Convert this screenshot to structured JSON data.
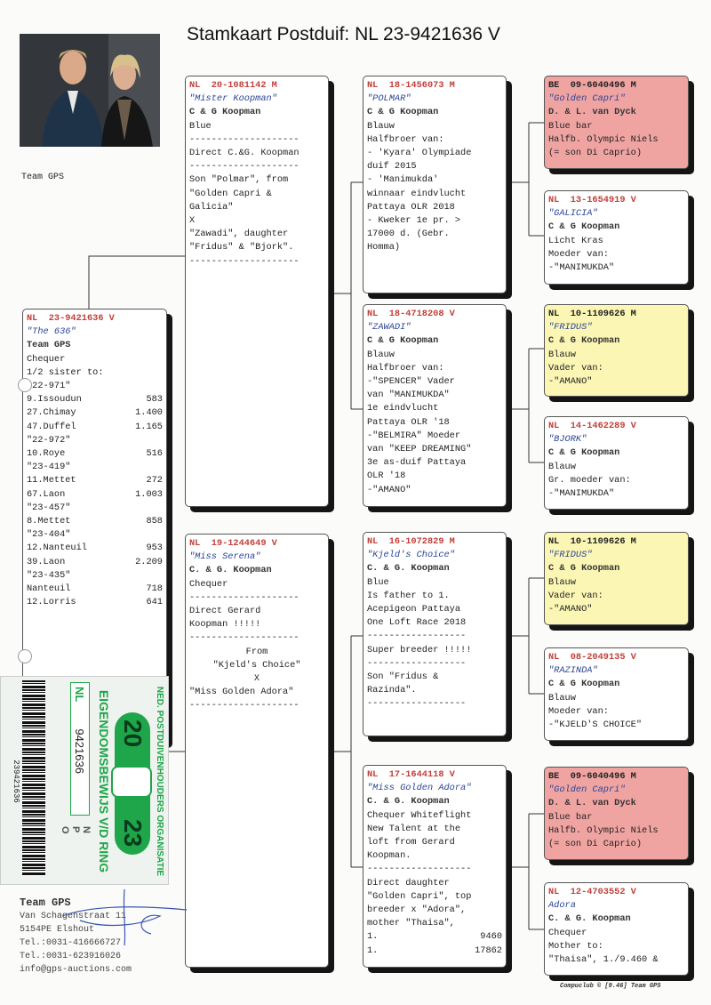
{
  "title": "Stamkaart Postduif: NL  23-9421636 V",
  "team_label": "Team GPS",
  "colors": {
    "ring_red": "#c0403a",
    "name_blue": "#2c4595",
    "pink": "#f0a4a2",
    "yellow": "#fbf6b4",
    "ring_green": "#1fa64a"
  },
  "main": {
    "ring": "NL  23-9421636 V",
    "name": "\"The 636\"",
    "owner": "Team GPS",
    "lines": [
      {
        "t": "Chequer"
      },
      {
        "t": "1/2 sister to:"
      },
      {
        "t": "\"22-971\""
      },
      {
        "t": "9.Issoudun",
        "v": "583"
      },
      {
        "t": "27.Chimay",
        "v": "1.400"
      },
      {
        "t": "47.Duffel",
        "v": "1.165"
      },
      {
        "t": ""
      },
      {
        "t": "\"22-972\""
      },
      {
        "t": "10.Roye",
        "v": "516"
      },
      {
        "t": ""
      },
      {
        "t": "\"23-419\""
      },
      {
        "t": "11.Mettet",
        "v": "272"
      },
      {
        "t": "67.Laon",
        "v": "1.003"
      },
      {
        "t": ""
      },
      {
        "t": "\"23-457\""
      },
      {
        "t": "8.Mettet",
        "v": "858"
      },
      {
        "t": ""
      },
      {
        "t": "\"23-404\""
      },
      {
        "t": "12.Nanteuil",
        "v": "953"
      },
      {
        "t": "39.Laon",
        "v": "2.209"
      },
      {
        "t": ""
      },
      {
        "t": "\"23-435\""
      },
      {
        "t": "Nanteuil",
        "v": "718"
      },
      {
        "t": "12.Lorris",
        "v": "641"
      }
    ]
  },
  "pedigree": [
    {
      "ring": "NL  20-1081142 M",
      "name": "\"Mister Koopman\"",
      "owner": "C & G Koopman",
      "lines": [
        {
          "t": "Blue"
        },
        {
          "t": "--------------------"
        },
        {
          "t": "Direct C.&G. Koopman"
        },
        {
          "t": "--------------------"
        },
        {
          "t": "Son \"Polmar\", from"
        },
        {
          "t": "\"Golden Capri &"
        },
        {
          "t": "Galicia\""
        },
        {
          "t": "X"
        },
        {
          "t": "\"Zawadi\", daughter"
        },
        {
          "t": "\"Fridus\" & \"Bjork\"."
        },
        {
          "t": "--------------------"
        }
      ]
    },
    {
      "ring": "NL  19-1244649 V",
      "name": "\"Miss Serena\"",
      "owner": "C. & G. Koopman",
      "lines": [
        {
          "t": "Chequer"
        },
        {
          "t": "--------------------"
        },
        {
          "t": "Direct Gerard"
        },
        {
          "t": "Koopman !!!!!"
        },
        {
          "t": "--------------------"
        },
        {
          "t": "From",
          "c": true
        },
        {
          "t": "\"Kjeld's Choice\"",
          "c": true
        },
        {
          "t": "X",
          "c": true
        },
        {
          "t": "\"Miss Golden Adora\""
        },
        {
          "t": "--------------------"
        }
      ]
    },
    {
      "ring": "NL  18-1456073 M",
      "name": "\"POLMAR\"",
      "owner": "C & G Koopman",
      "lines": [
        {
          "t": "Blauw"
        },
        {
          "t": "Halfbroer van:"
        },
        {
          "t": "- 'Kyara' Olympiade"
        },
        {
          "t": "duif 2015"
        },
        {
          "t": "- 'Manimukda'"
        },
        {
          "t": "winnaar eindvlucht"
        },
        {
          "t": "Pattaya OLR 2018"
        },
        {
          "t": "- Kweker 1e pr. >"
        },
        {
          "t": "17000 d. (Gebr."
        },
        {
          "t": "Homma)"
        }
      ]
    },
    {
      "ring": "NL  18-4718208 V",
      "name": "\"ZAWADI\"",
      "owner": "C & G Koopman",
      "lines": [
        {
          "t": "Blauw"
        },
        {
          "t": "Halfbroer van:"
        },
        {
          "t": "-\"SPENCER\" Vader"
        },
        {
          "t": "van \"MANIMUKDA\""
        },
        {
          "t": "1e eindvlucht"
        },
        {
          "t": "Pattaya OLR '18"
        },
        {
          "t": "-\"BELMIRA\" Moeder"
        },
        {
          "t": "van \"KEEP DREAMING\""
        },
        {
          "t": "3e as-duif Pattaya"
        },
        {
          "t": "OLR '18"
        },
        {
          "t": "-\"AMANO\""
        }
      ]
    },
    {
      "ring": "NL  16-1072829 M",
      "name": "\"Kjeld's Choice\"",
      "owner": "C. & G. Koopman",
      "lines": [
        {
          "t": "Blue"
        },
        {
          "t": "Is father to 1."
        },
        {
          "t": "Acepigeon Pattaya"
        },
        {
          "t": "One Loft Race 2018"
        },
        {
          "t": "------------------"
        },
        {
          "t": "Super breeder !!!!!"
        },
        {
          "t": "------------------"
        },
        {
          "t": "Son \"Fridus &"
        },
        {
          "t": "Razinda\"."
        },
        {
          "t": "------------------"
        }
      ]
    },
    {
      "ring": "NL  17-1644118 V",
      "name": "\"Miss Golden Adora\"",
      "owner": "C. & G. Koopman",
      "lines": [
        {
          "t": "Chequer Whiteflight"
        },
        {
          "t": "New Talent at the"
        },
        {
          "t": "loft from Gerard"
        },
        {
          "t": "Koopman."
        },
        {
          "t": "-------------------"
        },
        {
          "t": "Direct daughter"
        },
        {
          "t": "\"Golden Capri\", top"
        },
        {
          "t": "breeder x \"Adora\","
        },
        {
          "t": "mother \"Thaisa\","
        },
        {
          "t": "1.",
          "v": "9460"
        },
        {
          "t": "1.",
          "v": "17862"
        }
      ]
    },
    {
      "ring": "BE  09-6040496 M",
      "name": "\"Golden Capri\"",
      "owner": "D. & L. van Dyck",
      "tint": "pink",
      "lines": [
        {
          "t": "Blue bar"
        },
        {
          "t": "Halfb. Olympic Niels"
        },
        {
          "t": "(= son Di Caprio)"
        }
      ]
    },
    {
      "ring": "NL  13-1654919 V",
      "name": "\"GALICIA\"",
      "owner": "C & G Koopman",
      "lines": [
        {
          "t": "Licht Kras"
        },
        {
          "t": "Moeder van:"
        },
        {
          "t": "-\"MANIMUKDA\""
        }
      ]
    },
    {
      "ring": "NL  10-1109626 M",
      "name": "\"FRIDUS\"",
      "owner": "C & G Koopman",
      "tint": "yellow",
      "lines": [
        {
          "t": "Blauw"
        },
        {
          "t": "Vader van:"
        },
        {
          "t": "-\"AMANO\""
        }
      ]
    },
    {
      "ring": "NL  14-1462289 V",
      "name": "\"BJORK\"",
      "owner": "C & G Koopman",
      "lines": [
        {
          "t": "Blauw"
        },
        {
          "t": "Gr. moeder van:"
        },
        {
          "t": "-\"MANIMUKDA\""
        }
      ]
    },
    {
      "ring": "NL  10-1109626 M",
      "name": "\"FRIDUS\"",
      "owner": "C & G Koopman",
      "tint": "yellow",
      "lines": [
        {
          "t": "Blauw"
        },
        {
          "t": "Vader van:"
        },
        {
          "t": "-\"AMANO\""
        }
      ]
    },
    {
      "ring": "NL  08-2049135 V",
      "name": "\"RAZINDA\"",
      "owner": "C & G Koopman",
      "lines": [
        {
          "t": "Blauw"
        },
        {
          "t": "Moeder van:"
        },
        {
          "t": "-\"KJELD'S CHOICE\""
        }
      ]
    },
    {
      "ring": "BE  09-6040496 M",
      "name": "\"Golden Capri\"",
      "owner": "D. & L. van Dyck",
      "tint": "pink",
      "lines": [
        {
          "t": "Blue bar"
        },
        {
          "t": "Halfb. Olympic Niels"
        },
        {
          "t": "(= son Di Caprio)"
        }
      ]
    },
    {
      "ring": "NL  12-4703552 V",
      "name": "Adora",
      "owner": "C. & G. Koopman",
      "lines": [
        {
          "t": "Chequer"
        },
        {
          "t": "Mother to:"
        },
        {
          "t": "\"Thaisa\", 1./9.460 &"
        }
      ]
    }
  ],
  "ring_card": {
    "org": "NED. POSTDUIVENHOUDERS ORGANISATIE",
    "doc": "EIGENDOMSBEWIJS V/D RING",
    "year_a": "20",
    "year_b": "23",
    "country": "NL",
    "number": "9421636",
    "barcode_number": "239421636",
    "npo": [
      "N",
      "P",
      "O"
    ]
  },
  "address": {
    "name": "Team GPS",
    "street": "Van Schagenstraat 11",
    "city": "5154PE  Elshout",
    "tel1": "Tel.:0031-416666727",
    "tel2": "Tel.:0031-623916026",
    "email": "info@gps-auctions.com"
  },
  "footer": "Compuclub © [9.46]   Team GPS"
}
